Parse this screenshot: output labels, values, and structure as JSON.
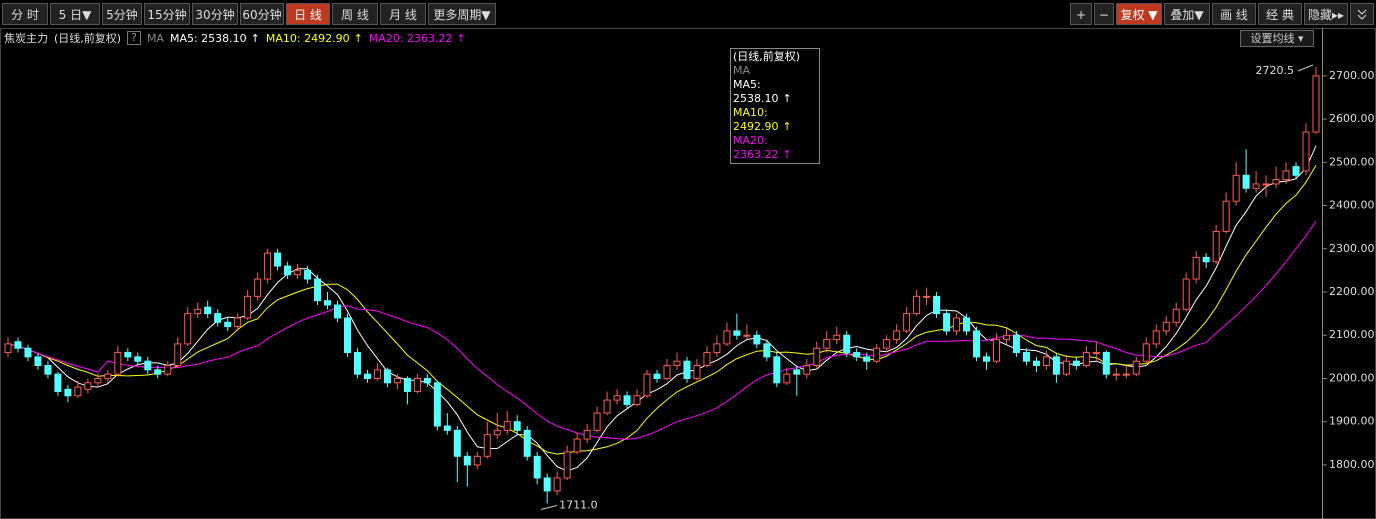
{
  "toolbar": {
    "left": [
      "分 时",
      "5 日▼",
      "5分钟",
      "15分钟",
      "30分钟",
      "60分钟",
      "日 线",
      "周 线",
      "月 线",
      "更多周期▼"
    ],
    "left_active": 6,
    "right": [
      "+",
      "−",
      "复权 ▼",
      "叠加▼",
      "画 线",
      "经 典",
      "隐藏▸▸"
    ],
    "right_active": 2
  },
  "header": {
    "instrument": "焦炭主力",
    "mode": "(日线,前复权)",
    "help": "?",
    "indicator": "MA",
    "settings_button": "设置均线 ▾"
  },
  "tooltip": {
    "title": "(日线,前复权)",
    "indicator": "MA"
  },
  "chart_data": {
    "type": "candlestick",
    "up_color": "#ff5a4f",
    "down_color": "#54ffff",
    "ylim": [
      1675,
      2806
    ],
    "yticks": [
      {
        "value": 1800,
        "label": "1800.00"
      },
      {
        "value": 1900,
        "label": "1900.00"
      },
      {
        "value": 2000,
        "label": "2000.00"
      },
      {
        "value": 2100,
        "label": "2100.00"
      },
      {
        "value": 2200,
        "label": "2200.00"
      },
      {
        "value": 2300,
        "label": "2300.00"
      },
      {
        "value": 2400,
        "label": "2400.00"
      },
      {
        "value": 2500,
        "label": "2500.00"
      },
      {
        "value": 2600,
        "label": "2600.00"
      },
      {
        "value": 2700,
        "label": "2700.00"
      }
    ],
    "max_label": {
      "index": 131,
      "value": 2720.5
    },
    "min_label": {
      "index": 54,
      "value": 1711,
      "label": "1711.0"
    },
    "ohlc": [
      [
        2060,
        2095,
        2050,
        2080
      ],
      [
        2085,
        2095,
        2060,
        2070
      ],
      [
        2070,
        2078,
        2040,
        2050
      ],
      [
        2050,
        2058,
        2020,
        2030
      ],
      [
        2030,
        2040,
        2000,
        2010
      ],
      [
        2010,
        2015,
        1960,
        1970
      ],
      [
        1975,
        1985,
        1945,
        1960
      ],
      [
        1960,
        1995,
        1955,
        1980
      ],
      [
        1975,
        2000,
        1965,
        1990
      ],
      [
        1990,
        2012,
        1980,
        2000
      ],
      [
        2000,
        2020,
        1990,
        2010
      ],
      [
        2010,
        2075,
        2005,
        2060
      ],
      [
        2060,
        2070,
        2040,
        2050
      ],
      [
        2050,
        2060,
        2030,
        2040
      ],
      [
        2040,
        2050,
        2010,
        2020
      ],
      [
        2020,
        2030,
        2000,
        2010
      ],
      [
        2010,
        2040,
        2005,
        2030
      ],
      [
        2030,
        2095,
        2025,
        2080
      ],
      [
        2080,
        2165,
        2075,
        2150
      ],
      [
        2150,
        2175,
        2140,
        2160
      ],
      [
        2165,
        2180,
        2140,
        2150
      ],
      [
        2150,
        2160,
        2120,
        2130
      ],
      [
        2130,
        2140,
        2110,
        2120
      ],
      [
        2120,
        2150,
        2110,
        2140
      ],
      [
        2140,
        2205,
        2135,
        2190
      ],
      [
        2190,
        2245,
        2180,
        2230
      ],
      [
        2230,
        2300,
        2220,
        2290
      ],
      [
        2290,
        2300,
        2250,
        2260
      ],
      [
        2260,
        2270,
        2230,
        2240
      ],
      [
        2240,
        2265,
        2230,
        2250
      ],
      [
        2250,
        2260,
        2220,
        2230
      ],
      [
        2230,
        2240,
        2170,
        2180
      ],
      [
        2180,
        2200,
        2160,
        2170
      ],
      [
        2170,
        2180,
        2130,
        2140
      ],
      [
        2140,
        2150,
        2050,
        2060
      ],
      [
        2060,
        2070,
        2000,
        2010
      ],
      [
        2010,
        2020,
        1990,
        2000
      ],
      [
        2000,
        2035,
        1995,
        2020
      ],
      [
        2020,
        2025,
        1980,
        1990
      ],
      [
        1990,
        2010,
        1975,
        2000
      ],
      [
        2000,
        2005,
        1940,
        1970
      ],
      [
        1970,
        2010,
        1965,
        2000
      ],
      [
        2000,
        2010,
        1980,
        1990
      ],
      [
        1990,
        1995,
        1880,
        1890
      ],
      [
        1890,
        1920,
        1870,
        1880
      ],
      [
        1880,
        1890,
        1760,
        1820
      ],
      [
        1820,
        1830,
        1750,
        1800
      ],
      [
        1800,
        1830,
        1790,
        1820
      ],
      [
        1820,
        1900,
        1815,
        1870
      ],
      [
        1870,
        1920,
        1860,
        1880
      ],
      [
        1880,
        1925,
        1870,
        1900
      ],
      [
        1900,
        1915,
        1870,
        1880
      ],
      [
        1880,
        1890,
        1810,
        1820
      ],
      [
        1820,
        1830,
        1755,
        1770
      ],
      [
        1770,
        1780,
        1711,
        1740
      ],
      [
        1740,
        1785,
        1730,
        1770
      ],
      [
        1770,
        1845,
        1765,
        1830
      ],
      [
        1830,
        1875,
        1825,
        1860
      ],
      [
        1860,
        1895,
        1850,
        1880
      ],
      [
        1880,
        1935,
        1875,
        1920
      ],
      [
        1920,
        1970,
        1915,
        1950
      ],
      [
        1950,
        1975,
        1940,
        1960
      ],
      [
        1960,
        1970,
        1930,
        1940
      ],
      [
        1940,
        1975,
        1935,
        1960
      ],
      [
        1960,
        2020,
        1955,
        2010
      ],
      [
        2010,
        2020,
        1990,
        2000
      ],
      [
        2000,
        2045,
        1995,
        2030
      ],
      [
        2030,
        2060,
        2020,
        2040
      ],
      [
        2040,
        2050,
        1990,
        2000
      ],
      [
        2000,
        2045,
        1995,
        2030
      ],
      [
        2030,
        2075,
        2025,
        2060
      ],
      [
        2060,
        2100,
        2050,
        2080
      ],
      [
        2080,
        2130,
        2075,
        2110
      ],
      [
        2110,
        2150,
        2090,
        2100
      ],
      [
        2100,
        2125,
        2090,
        2100
      ],
      [
        2100,
        2110,
        2070,
        2080
      ],
      [
        2080,
        2090,
        2040,
        2050
      ],
      [
        2050,
        2060,
        1980,
        1990
      ],
      [
        1990,
        2025,
        1985,
        2010
      ],
      [
        2020,
        2030,
        1960,
        2010
      ],
      [
        2010,
        2045,
        2000,
        2030
      ],
      [
        2030,
        2085,
        2025,
        2070
      ],
      [
        2070,
        2110,
        2060,
        2090
      ],
      [
        2090,
        2120,
        2080,
        2100
      ],
      [
        2100,
        2110,
        2050,
        2060
      ],
      [
        2060,
        2070,
        2040,
        2050
      ],
      [
        2050,
        2060,
        2020,
        2040
      ],
      [
        2040,
        2080,
        2035,
        2070
      ],
      [
        2070,
        2100,
        2060,
        2090
      ],
      [
        2090,
        2125,
        2080,
        2110
      ],
      [
        2110,
        2165,
        2105,
        2150
      ],
      [
        2150,
        2205,
        2145,
        2190
      ],
      [
        2190,
        2210,
        2170,
        2190
      ],
      [
        2190,
        2200,
        2140,
        2150
      ],
      [
        2150,
        2160,
        2100,
        2110
      ],
      [
        2110,
        2150,
        2100,
        2140
      ],
      [
        2140,
        2150,
        2100,
        2110
      ],
      [
        2110,
        2120,
        2040,
        2050
      ],
      [
        2050,
        2060,
        2020,
        2040
      ],
      [
        2040,
        2105,
        2035,
        2090
      ],
      [
        2090,
        2115,
        2080,
        2100
      ],
      [
        2100,
        2110,
        2050,
        2060
      ],
      [
        2060,
        2070,
        2030,
        2040
      ],
      [
        2040,
        2050,
        2015,
        2030
      ],
      [
        2030,
        2065,
        2020,
        2050
      ],
      [
        2050,
        2060,
        1990,
        2010
      ],
      [
        2010,
        2055,
        2005,
        2040
      ],
      [
        2040,
        2050,
        2020,
        2030
      ],
      [
        2030,
        2075,
        2025,
        2060
      ],
      [
        2060,
        2085,
        2040,
        2060
      ],
      [
        2060,
        2065,
        2000,
        2010
      ],
      [
        2010,
        2025,
        1995,
        2010
      ],
      [
        2010,
        2030,
        2000,
        2010
      ],
      [
        2010,
        2050,
        2005,
        2040
      ],
      [
        2040,
        2095,
        2035,
        2080
      ],
      [
        2080,
        2125,
        2070,
        2110
      ],
      [
        2110,
        2145,
        2100,
        2130
      ],
      [
        2130,
        2175,
        2120,
        2160
      ],
      [
        2160,
        2245,
        2155,
        2230
      ],
      [
        2230,
        2295,
        2220,
        2280
      ],
      [
        2280,
        2290,
        2255,
        2270
      ],
      [
        2270,
        2355,
        2265,
        2340
      ],
      [
        2340,
        2430,
        2335,
        2410
      ],
      [
        2410,
        2500,
        2400,
        2470
      ],
      [
        2470,
        2530,
        2430,
        2440
      ],
      [
        2440,
        2480,
        2430,
        2450
      ],
      [
        2450,
        2470,
        2420,
        2450
      ],
      [
        2450,
        2490,
        2440,
        2460
      ],
      [
        2460,
        2500,
        2450,
        2480
      ],
      [
        2490,
        2500,
        2460,
        2470
      ],
      [
        2480,
        2590,
        2470,
        2570
      ],
      [
        2570,
        2720.5,
        2565,
        2700
      ]
    ],
    "series": [
      {
        "name": "MA5",
        "label": "MA5: 2538.10",
        "trend": "↑",
        "color": "#ffffff",
        "values": [
          2080,
          2075,
          2067,
          2058,
          2048,
          2026,
          2004,
          1990,
          1982,
          1980,
          1988,
          2010,
          2022,
          2032,
          2036,
          2036,
          2030,
          2036,
          2058,
          2086,
          2114,
          2134,
          2142,
          2140,
          2146,
          2162,
          2194,
          2222,
          2242,
          2254,
          2254,
          2232,
          2214,
          2194,
          2156,
          2112,
          2076,
          2046,
          2016,
          2004,
          1996,
          1996,
          1990,
          1970,
          1946,
          1916,
          1876,
          1842,
          1838,
          1838,
          1854,
          1870,
          1870,
          1850,
          1822,
          1796,
          1786,
          1794,
          1816,
          1852,
          1888,
          1914,
          1930,
          1946,
          1964,
          1974,
          1988,
          2008,
          2016,
          2020,
          2032,
          2042,
          2056,
          2076,
          2090,
          2094,
          2088,
          2064,
          2046,
          2028,
          2018,
          2022,
          2042,
          2060,
          2070,
          2074,
          2068,
          2064,
          2062,
          2072,
          2092,
          2122,
          2146,
          2158,
          2158,
          2156,
          2140,
          2112,
          2090,
          2088,
          2078,
          2068,
          2066,
          2064,
          2056,
          2038,
          2034,
          2032,
          2038,
          2040,
          2032,
          2034,
          2030,
          2026,
          2030,
          2050,
          2074,
          2104,
          2142,
          2182,
          2214,
          2256,
          2306,
          2354,
          2386,
          2422,
          2444,
          2454,
          2456,
          2462,
          2486,
          2538.1
        ]
      },
      {
        "name": "MA10",
        "label": "MA10: 2492.90",
        "trend": "↑",
        "color": "#ffff00",
        "values": [
          2080,
          2075,
          2067,
          2058,
          2048,
          2040,
          2030,
          2021,
          2014,
          2005,
          2007,
          2007,
          2006,
          2007,
          2008,
          2012,
          2020,
          2029,
          2045,
          2061,
          2072,
          2082,
          2092,
          2113,
          2130,
          2138,
          2164,
          2182,
          2191,
          2200,
          2208,
          2213,
          2218,
          2218,
          2205,
          2183,
          2154,
          2130,
          2105,
          2080,
          2054,
          2036,
          2018,
          1993,
          1975,
          1956,
          1936,
          1916,
          1904,
          1892,
          1885,
          1873,
          1856,
          1844,
          1830,
          1825,
          1828,
          1832,
          1833,
          1837,
          1842,
          1850,
          1862,
          1880,
          1908,
          1931,
          1951,
          1969,
          1981,
          1992,
          2003,
          2015,
          2032,
          2046,
          2055,
          2063,
          2065,
          2060,
          2061,
          2059,
          2056,
          2058,
          2065,
          2062,
          2058,
          2051,
          2045,
          2043,
          2052,
          2066,
          2081,
          2098,
          2107,
          2111,
          2115,
          2124,
          2131,
          2129,
          2124,
          2123,
          2117,
          2104,
          2089,
          2076,
          2072,
          2058,
          2051,
          2049,
          2051,
          2048,
          2035,
          2034,
          2031,
          2032,
          2035,
          2041,
          2054,
          2067,
          2084,
          2106,
          2132,
          2165,
          2205,
          2248,
          2286,
          2318,
          2350,
          2380,
          2405,
          2424,
          2454,
          2492.9
        ]
      },
      {
        "name": "MA20",
        "label": "MA20: 2363.22",
        "trend": "↑",
        "color": "#ff00ff",
        "values": [
          2080,
          2075,
          2067,
          2058,
          2050,
          2043,
          2035,
          2028,
          2022,
          2015,
          2040,
          2035,
          2030,
          2028,
          2025,
          2026,
          2025,
          2025,
          2030,
          2033,
          2040,
          2045,
          2049,
          2060,
          2069,
          2075,
          2092,
          2105,
          2118,
          2130,
          2140,
          2147,
          2155,
          2165,
          2168,
          2160,
          2159,
          2156,
          2148,
          2140,
          2131,
          2124,
          2118,
          2105,
          2090,
          2070,
          2045,
          2023,
          2005,
          1986,
          1970,
          1955,
          1937,
          1918,
          1902,
          1890,
          1882,
          1874,
          1868,
          1864,
          1863,
          1861,
          1859,
          1862,
          1869,
          1878,
          1889,
          1900,
          1907,
          1914,
          1922,
          1932,
          1947,
          1963,
          1981,
          1997,
          2008,
          2014,
          2021,
          2025,
          2030,
          2036,
          2048,
          2054,
          2056,
          2057,
          2055,
          2051,
          2056,
          2062,
          2068,
          2078,
          2086,
          2086,
          2086,
          2087,
          2088,
          2086,
          2088,
          2094,
          2099,
          2101,
          2098,
          2093,
          2093,
          2091,
          2091,
          2089,
          2087,
          2085,
          2076,
          2069,
          2060,
          2054,
          2053,
          2050,
          2052,
          2058,
          2067,
          2077,
          2083,
          2105,
          2125,
          2145,
          2167,
          2190,
          2215,
          2242,
          2270,
          2300,
          2330,
          2363.22
        ]
      }
    ]
  }
}
